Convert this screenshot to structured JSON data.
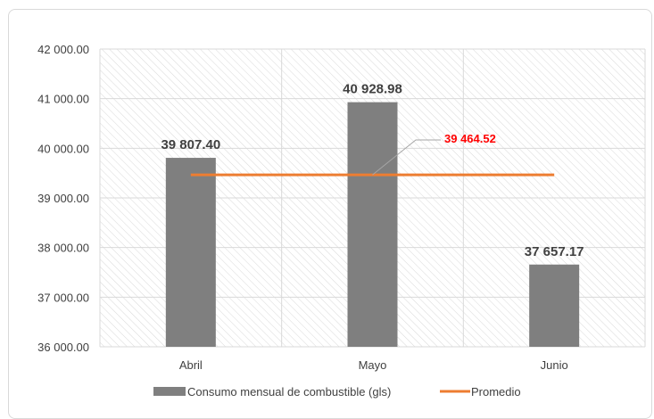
{
  "chart_data": {
    "type": "bar",
    "categories": [
      "Abril",
      "Mayo",
      "Junio"
    ],
    "series": [
      {
        "name": "Consumo mensual de combustible (gls)",
        "type": "bar",
        "color": "#7f7f7f",
        "values": [
          39807.4,
          40928.98,
          37657.17
        ],
        "data_labels": [
          "39 807.40",
          "40 928.98",
          "37 657.17"
        ]
      },
      {
        "name": "Promedio",
        "type": "line",
        "color": "#ed7d31",
        "values": [
          39464.52,
          39464.52,
          39464.52
        ]
      }
    ],
    "average_annotation": "39 464.52",
    "ylim": [
      36000,
      42000
    ],
    "yticks": [
      36000,
      37000,
      38000,
      39000,
      40000,
      41000,
      42000
    ],
    "ytick_labels": [
      "36 000.00",
      "37 000.00",
      "38 000.00",
      "39 000.00",
      "40 000.00",
      "41 000.00",
      "42 000.00"
    ],
    "grid": true,
    "plot_background": "hatched",
    "legend_position": "bottom"
  }
}
